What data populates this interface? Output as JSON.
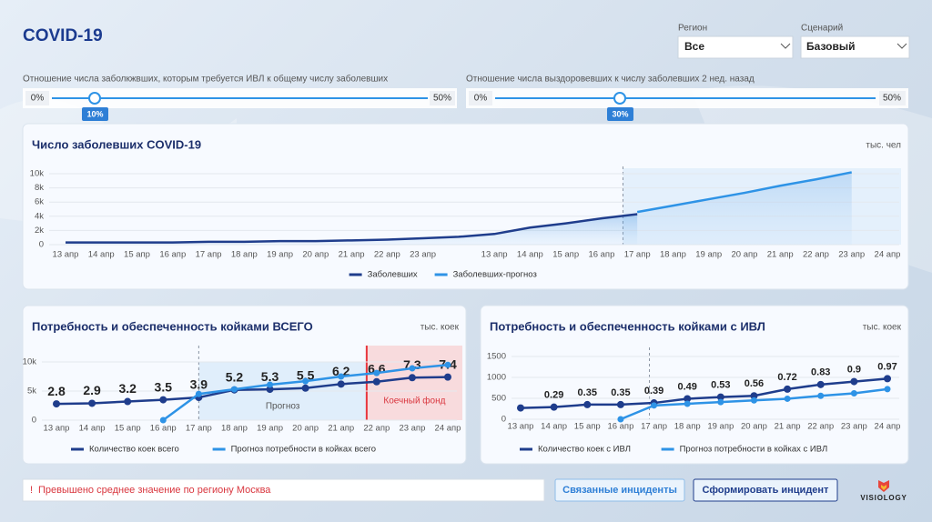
{
  "header": {
    "title": "COVID-19"
  },
  "filters": [
    {
      "label": "Регион",
      "value": "Все"
    },
    {
      "label": "Сценарий",
      "value": "Базовый"
    }
  ],
  "sliders": [
    {
      "label": "Отношение числа заболкжвших, которым требуется ИВЛ к общему числу заболевших",
      "min": "0%",
      "max": "50%",
      "value": "10%"
    },
    {
      "label": "Отношение числа выздоровевших к числу заболевших 2 нед. назад",
      "min": "0%",
      "max": "50%",
      "value": "30%"
    }
  ],
  "chart_data": [
    {
      "type": "line",
      "title": "Число заболевших COVID-19",
      "unit": "тыс. чел",
      "categories": [
        "13 апр",
        "14 апр",
        "15 апр",
        "16 апр",
        "17 апр",
        "18 апр",
        "19 апр",
        "20 апр",
        "21 апр",
        "22 апр",
        "23 апр",
        null,
        "13 апр",
        "14 апр",
        "15 апр",
        "16 апр",
        "17 апр",
        "18 апр",
        "19 апр",
        "20 апр",
        "21 апр",
        "22 апр",
        "23 апр",
        "24 апр"
      ],
      "series": [
        {
          "name": "Заболевших",
          "color": "#1f3d8c",
          "values": [
            300,
            300,
            300,
            300,
            400,
            400,
            500,
            500,
            600,
            700,
            900,
            1100,
            1500,
            2400,
            3000,
            3700,
            4300,
            null,
            null,
            null,
            null,
            null,
            null,
            null
          ]
        },
        {
          "name": "Заболевших-прогноз",
          "color": "#2e93e6",
          "values": [
            null,
            null,
            null,
            null,
            null,
            null,
            null,
            null,
            null,
            null,
            null,
            null,
            null,
            null,
            null,
            null,
            4600,
            5500,
            6400,
            7300,
            8300,
            9200,
            10200,
            null
          ]
        }
      ],
      "ylim": [
        0,
        10000
      ],
      "yticks": [
        0,
        {
          "value": 2000,
          "label": "2k"
        },
        {
          "value": 4000,
          "label": "4k"
        },
        {
          "value": 6000,
          "label": "6k"
        },
        {
          "value": 8000,
          "label": "8k"
        },
        {
          "value": 10000,
          "label": "10k"
        }
      ],
      "grid": true,
      "legend": "bottom"
    },
    {
      "type": "line",
      "title": "Потребность и обеспеченность койками ВСЕГО",
      "unit": "тыс. коек",
      "categories": [
        "13 апр",
        "14 апр",
        "15 апр",
        "16 апр",
        "17 апр",
        "18 апр",
        "19 апр",
        "20 апр",
        "21 апр",
        "22 апр",
        "23 апр",
        "24 апр"
      ],
      "series": [
        {
          "name": "Количество коек всего",
          "color": "#1f3d8c",
          "values": [
            2800,
            2900,
            3200,
            3500,
            3900,
            5200,
            5300,
            5500,
            6200,
            6600,
            7300,
            7400
          ],
          "value_labels": [
            "2.8",
            "2.9",
            "3.2",
            "3.5",
            "3.9",
            "5.2",
            "5.3",
            "5.5",
            "6.2",
            "6.6",
            "7.3",
            "7.4"
          ]
        },
        {
          "name": "Прогноз потребности в койках всего",
          "color": "#2e93e6",
          "values": [
            null,
            null,
            null,
            0,
            4500,
            5300,
            6100,
            6700,
            7500,
            8100,
            8900,
            9500
          ]
        }
      ],
      "ylim": [
        0,
        10000
      ],
      "yticks": [
        0,
        {
          "value": 5000,
          "label": "5k"
        },
        {
          "value": 10000,
          "label": "10k"
        }
      ],
      "grid": true,
      "legend": "bottom",
      "annotations": [
        "Прогноз",
        "Коечный фонд"
      ]
    },
    {
      "type": "line",
      "title": "Потребность и обеспеченность койками с ИВЛ",
      "unit": "тыс. коек",
      "categories": [
        "13 апр",
        "14 апр",
        "15 апр",
        "16 апр",
        "17 апр",
        "18 апр",
        "19 апр",
        "20 апр",
        "21 апр",
        "22 апр",
        "23 апр",
        "24 апр"
      ],
      "series": [
        {
          "name": "Количество коек с ИВЛ",
          "color": "#1f3d8c",
          "values": [
            270,
            290,
            350,
            350,
            390,
            490,
            530,
            560,
            720,
            830,
            900,
            970
          ],
          "value_labels": [
            null,
            "0.29",
            "0.35",
            "0.35",
            "0.39",
            "0.49",
            "0.53",
            "0.56",
            "0.72",
            "0.83",
            "0.9",
            "0.97"
          ]
        },
        {
          "name": "Прогноз потребности в койках с ИВЛ",
          "color": "#2e93e6",
          "values": [
            null,
            null,
            null,
            0,
            330,
            370,
            410,
            450,
            490,
            560,
            620,
            720
          ]
        }
      ],
      "ylim": [
        0,
        1500
      ],
      "yticks": [
        0,
        500,
        1000,
        1500
      ],
      "grid": true,
      "legend": "bottom"
    }
  ],
  "alert": {
    "icon": "!",
    "text": "Превышено среднее значение по региону Москва"
  },
  "buttons": [
    "Связанные инциденты",
    "Сформировать инцидент"
  ],
  "logo": "VISIOLOGY"
}
